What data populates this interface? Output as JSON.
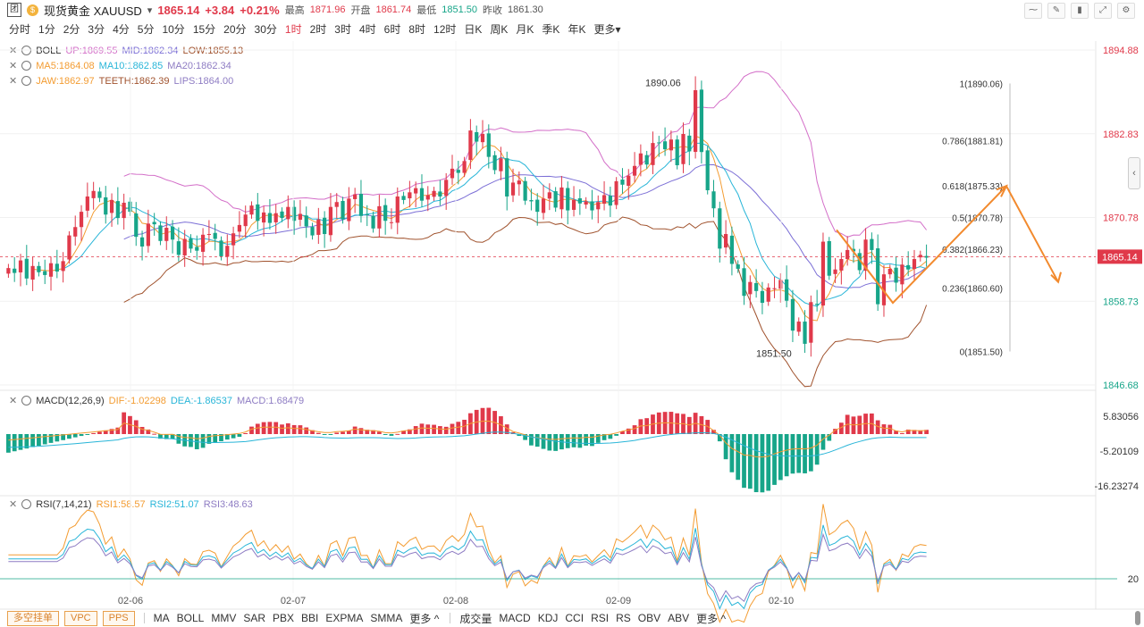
{
  "header": {
    "logo": "团",
    "coin": "$",
    "name": "现货黄金 XAUUSD",
    "dropdown": "▾",
    "price": "1865.14",
    "change": "+3.84",
    "change_pct": "+0.21%",
    "high_label": "最高",
    "high": "1871.96",
    "open_label": "开盘",
    "open": "1861.74",
    "low_label": "最低",
    "low": "1851.50",
    "prev_label": "昨收",
    "prev": "1861.30"
  },
  "periods": [
    "分时",
    "1分",
    "2分",
    "3分",
    "4分",
    "5分",
    "10分",
    "15分",
    "20分",
    "30分",
    "1时",
    "2时",
    "3时",
    "4时",
    "6时",
    "8时",
    "12时",
    "日K",
    "周K",
    "月K",
    "季K",
    "年K",
    "更多▾"
  ],
  "active_period": "1时",
  "indicators": {
    "boll": {
      "name": "BOLL",
      "up": "UP:1869.55",
      "mid": "MID:1862.34",
      "low": "LOW:1855.13"
    },
    "ma": {
      "ma5": "MA5:1864.08",
      "ma10": "MA10:1862.85",
      "ma20": "MA20:1862.34"
    },
    "alligator": {
      "jaw": "JAW:1862.97",
      "teeth": "TEETH:1862.39",
      "lips": "LIPS:1864.00"
    },
    "macd": {
      "name": "MACD(12,26,9)",
      "dif": "DIF:-1.02298",
      "dea": "DEA:-1.86537",
      "macd": "MACD:1.68479"
    },
    "rsi": {
      "name": "RSI(7,14,21)",
      "rsi1": "RSI1:58.57",
      "rsi2": "RSI2:51.07",
      "rsi3": "RSI3:48.63"
    }
  },
  "footer": {
    "boxes": [
      "多空挂单",
      "VPC",
      "PPS"
    ],
    "main_inds": [
      "MA",
      "BOLL",
      "MMV",
      "SAR",
      "PBX",
      "BBI",
      "EXPMA",
      "SMMA",
      "更多 ^"
    ],
    "sub_inds": [
      "成交量",
      "MACD",
      "KDJ",
      "CCI",
      "RSI",
      "RS",
      "OBV",
      "ABV",
      "更多 ^"
    ]
  },
  "colors": {
    "up": "#e0394a",
    "down": "#17a589",
    "boll_up": "#d36ec8",
    "boll_mid": "#7c6fd6",
    "boll_low": "#a0522d",
    "ma5": "#f39c32",
    "ma10": "#28b5d8",
    "ma20": "#8e7cc3",
    "fib": "#999999",
    "arrow": "#f28a2e"
  },
  "chart_data": [
    {
      "type": "candlestick",
      "title": "现货黄金 XAUUSD 1时",
      "x_ticks": [
        "02-06",
        "02-07",
        "02-08",
        "02-09",
        "02-10"
      ],
      "y_ticks": [
        1894.88,
        1882.83,
        1870.78,
        1858.73,
        1846.68
      ],
      "ylim": [
        1846.68,
        1894.88
      ],
      "current_price": 1865.14,
      "annotations": [
        {
          "label": "1890.06",
          "value": 1890.06
        },
        {
          "label": "1851.50",
          "value": 1851.5
        }
      ],
      "fibonacci": [
        {
          "label": "1(1890.06)",
          "value": 1890.06
        },
        {
          "label": "0.786(1881.81)",
          "value": 1881.81
        },
        {
          "label": "0.618(1875.33)",
          "value": 1875.33
        },
        {
          "label": "0.5(1870.78)",
          "value": 1870.78
        },
        {
          "label": "0.382(1866.23)",
          "value": 1866.23
        },
        {
          "label": "0.236(1860.60)",
          "value": 1860.6
        },
        {
          "label": "0(1851.50)",
          "value": 1851.5
        }
      ],
      "closes": [
        1863.5,
        1862.8,
        1864.6,
        1862.0,
        1863.8,
        1862.9,
        1862.5,
        1864.2,
        1863.0,
        1864.5,
        1868.2,
        1869.4,
        1871.6,
        1873.8,
        1874.6,
        1873.6,
        1871.2,
        1873.3,
        1870.7,
        1872.9,
        1871.6,
        1868.0,
        1866.6,
        1869.9,
        1869.8,
        1867.4,
        1869.3,
        1867.6,
        1865.4,
        1867.7,
        1866.3,
        1866.0,
        1868.3,
        1868.4,
        1867.7,
        1865.2,
        1866.7,
        1868.5,
        1869.7,
        1871.2,
        1872.5,
        1870.3,
        1871.5,
        1870.0,
        1871.4,
        1870.7,
        1872.3,
        1870.3,
        1871.3,
        1869.5,
        1868.2,
        1870.5,
        1868.4,
        1872.3,
        1873.0,
        1870.5,
        1873.5,
        1874.1,
        1871.0,
        1871.2,
        1869.2,
        1872.4,
        1870.3,
        1870.1,
        1873.8,
        1873.3,
        1874.4,
        1875.0,
        1873.2,
        1874.0,
        1874.6,
        1873.8,
        1876.2,
        1877.8,
        1877.2,
        1878.9,
        1883.3,
        1881.7,
        1882.8,
        1879.5,
        1877.6,
        1879.3,
        1873.8,
        1875.8,
        1876.1,
        1873.2,
        1873.1,
        1871.6,
        1873.5,
        1874.4,
        1872.2,
        1875.1,
        1871.8,
        1873.3,
        1872.8,
        1873.1,
        1871.8,
        1873.0,
        1874.0,
        1872.5,
        1876.0,
        1875.5,
        1876.8,
        1878.2,
        1880.0,
        1878.4,
        1881.5,
        1881.5,
        1880.6,
        1882.0,
        1878.3,
        1882.8,
        1880.3,
        1889.1,
        1880.2,
        1874.7,
        1872.1,
        1866.3,
        1868.4,
        1864.1,
        1863.4,
        1859.5,
        1861.5,
        1860.2,
        1858.5,
        1860.7,
        1860.6,
        1861.8,
        1858.8,
        1854.5,
        1855.8,
        1852.6,
        1858.6,
        1858.2,
        1867.3,
        1862.4,
        1863.3,
        1864.8,
        1866.1,
        1865.9,
        1863.2,
        1867.6,
        1866.1,
        1858.3,
        1862.6,
        1863.4,
        1861.4,
        1864.0,
        1863.3,
        1864.8,
        1865.4,
        1865.0
      ]
    },
    {
      "type": "bar",
      "title": "MACD(12,26,9)",
      "y_ticks": [
        5.83056,
        -5.20109,
        -16.23274
      ]
    },
    {
      "type": "line",
      "title": "RSI(7,14,21)",
      "y_ticks": [
        20
      ]
    }
  ]
}
